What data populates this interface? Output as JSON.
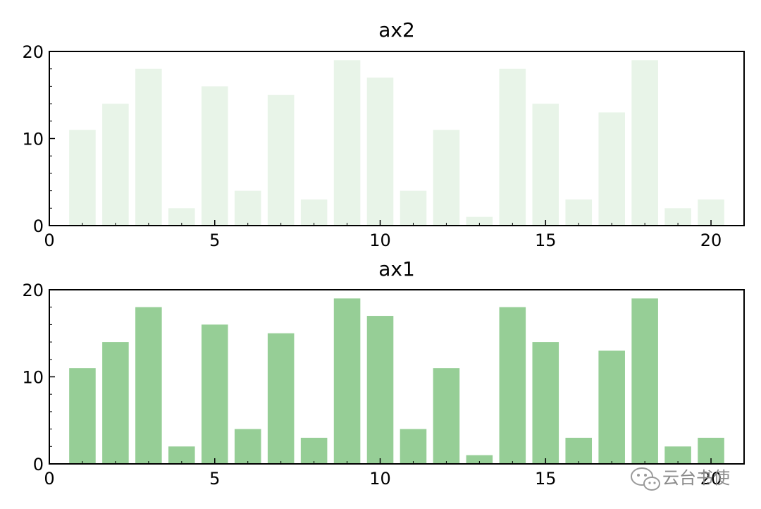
{
  "chart_data": [
    {
      "type": "bar",
      "title": "ax2",
      "x": [
        1,
        2,
        3,
        4,
        5,
        6,
        7,
        8,
        9,
        10,
        11,
        12,
        13,
        14,
        15,
        16,
        17,
        18,
        19,
        20
      ],
      "values": [
        11,
        14,
        18,
        2,
        16,
        4,
        15,
        3,
        19,
        17,
        4,
        11,
        1,
        18,
        14,
        3,
        13,
        19,
        2,
        3
      ],
      "xlim": [
        0,
        21
      ],
      "ylim": [
        0,
        20
      ],
      "xticks": [
        0,
        5,
        10,
        15,
        20
      ],
      "yticks": [
        0,
        10,
        20
      ],
      "bar_color": "#e8f4e8",
      "grid": false
    },
    {
      "type": "bar",
      "title": "ax1",
      "x": [
        1,
        2,
        3,
        4,
        5,
        6,
        7,
        8,
        9,
        10,
        11,
        12,
        13,
        14,
        15,
        16,
        17,
        18,
        19,
        20
      ],
      "values": [
        11,
        14,
        18,
        2,
        16,
        4,
        15,
        3,
        19,
        17,
        4,
        11,
        1,
        18,
        14,
        3,
        13,
        19,
        2,
        3
      ],
      "xlim": [
        0,
        21
      ],
      "ylim": [
        0,
        20
      ],
      "xticks": [
        0,
        5,
        10,
        15,
        20
      ],
      "yticks": [
        0,
        10,
        20
      ],
      "bar_color": "#96ce96",
      "grid": false
    }
  ],
  "watermark": {
    "icon": "wechat-icon",
    "text": "云台书使"
  }
}
